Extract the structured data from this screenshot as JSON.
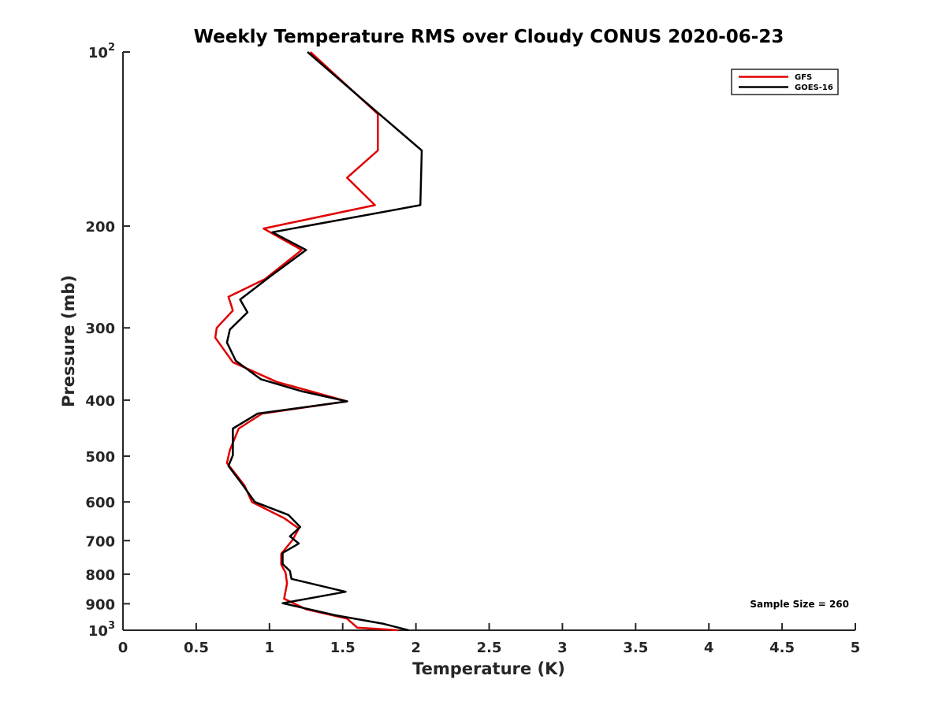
{
  "chart_data": {
    "type": "line",
    "title": "Weekly Temperature RMS over Cloudy CONUS 2020-06-23",
    "xlabel": "Temperature (K)",
    "ylabel": "Pressure (mb)",
    "xlim": [
      0,
      5
    ],
    "ylim": [
      100,
      1000
    ],
    "yscale": "log",
    "y_reversed": true,
    "grid": false,
    "legend_position": "top-right",
    "x_ticks": [
      "0",
      "0.5",
      "1",
      "1.5",
      "2",
      "2.5",
      "3",
      "3.5",
      "4",
      "4.5",
      "5"
    ],
    "y_ticks": [
      {
        "value": 100,
        "label": "10",
        "sup": "2"
      },
      {
        "value": 200,
        "label": "200",
        "sup": ""
      },
      {
        "value": 300,
        "label": "300",
        "sup": ""
      },
      {
        "value": 400,
        "label": "400",
        "sup": ""
      },
      {
        "value": 500,
        "label": "500",
        "sup": ""
      },
      {
        "value": 600,
        "label": "600",
        "sup": ""
      },
      {
        "value": 700,
        "label": "700",
        "sup": ""
      },
      {
        "value": 800,
        "label": "800",
        "sup": ""
      },
      {
        "value": 900,
        "label": "900",
        "sup": ""
      },
      {
        "value": 1000,
        "label": "10",
        "sup": "3"
      }
    ],
    "annotation": "Sample Size = 260",
    "series": [
      {
        "name": "GFS",
        "color": "#e00000",
        "points": [
          [
            1.28,
            100
          ],
          [
            1.74,
            128
          ],
          [
            1.74,
            148
          ],
          [
            1.53,
            165
          ],
          [
            1.72,
            184
          ],
          [
            0.96,
            202
          ],
          [
            1.22,
            220
          ],
          [
            0.97,
            247
          ],
          [
            0.72,
            265
          ],
          [
            0.75,
            280
          ],
          [
            0.64,
            300
          ],
          [
            0.63,
            312
          ],
          [
            0.75,
            344
          ],
          [
            1.05,
            372
          ],
          [
            1.53,
            402
          ],
          [
            0.95,
            422
          ],
          [
            0.79,
            448
          ],
          [
            0.73,
            488
          ],
          [
            0.71,
            514
          ],
          [
            0.83,
            562
          ],
          [
            0.88,
            600
          ],
          [
            1.1,
            640
          ],
          [
            1.2,
            667
          ],
          [
            1.16,
            697
          ],
          [
            1.08,
            738
          ],
          [
            1.08,
            770
          ],
          [
            1.11,
            795
          ],
          [
            1.12,
            830
          ],
          [
            1.1,
            882
          ],
          [
            1.25,
            920
          ],
          [
            1.53,
            955
          ],
          [
            1.6,
            990
          ],
          [
            1.88,
            1000
          ]
        ]
      },
      {
        "name": "GOES-16",
        "color": "#000000",
        "points": [
          [
            1.26,
            100
          ],
          [
            1.75,
            128
          ],
          [
            2.04,
            148
          ],
          [
            2.03,
            184
          ],
          [
            1.02,
            205
          ],
          [
            1.25,
            220
          ],
          [
            1.0,
            245
          ],
          [
            0.8,
            268
          ],
          [
            0.85,
            282
          ],
          [
            0.73,
            302
          ],
          [
            0.71,
            318
          ],
          [
            0.77,
            342
          ],
          [
            0.94,
            368
          ],
          [
            1.22,
            386
          ],
          [
            1.53,
            402
          ],
          [
            0.92,
            422
          ],
          [
            0.75,
            448
          ],
          [
            0.75,
            498
          ],
          [
            0.72,
            520
          ],
          [
            0.82,
            562
          ],
          [
            0.9,
            600
          ],
          [
            1.13,
            632
          ],
          [
            1.21,
            663
          ],
          [
            1.14,
            688
          ],
          [
            1.2,
            708
          ],
          [
            1.09,
            735
          ],
          [
            1.09,
            768
          ],
          [
            1.14,
            790
          ],
          [
            1.15,
            815
          ],
          [
            1.52,
            858
          ],
          [
            1.09,
            898
          ],
          [
            1.45,
            942
          ],
          [
            1.78,
            975
          ],
          [
            1.95,
            1000
          ]
        ]
      }
    ]
  }
}
